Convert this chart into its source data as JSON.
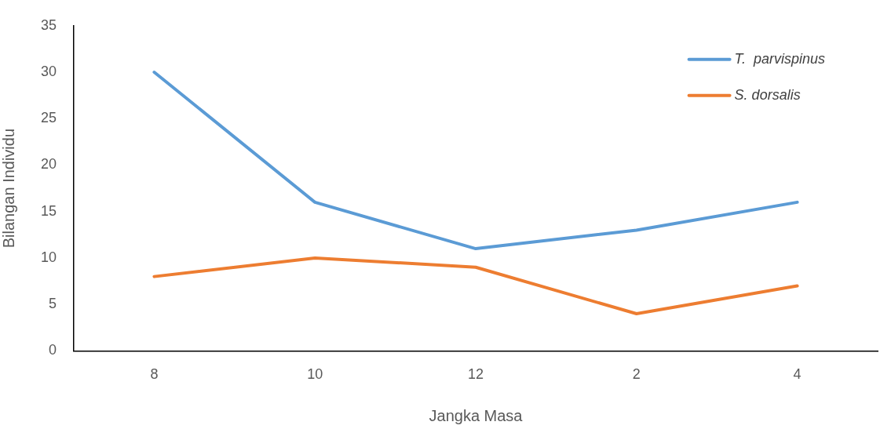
{
  "chart_data": {
    "type": "line",
    "xlabel": "Jangka Masa",
    "ylabel": "Bilangan Individu",
    "categories": [
      "8",
      "10",
      "12",
      "2",
      "4"
    ],
    "series": [
      {
        "name": "T.  parvispinus",
        "color": "#5b9bd5",
        "values": [
          30,
          16,
          11,
          13,
          16
        ]
      },
      {
        "name": "S. dorsalis",
        "color": "#ed7d31",
        "values": [
          8,
          10,
          9,
          4,
          7
        ]
      }
    ],
    "ylim": [
      0,
      35
    ],
    "yticks": [
      0,
      5,
      10,
      15,
      20,
      25,
      30,
      35
    ],
    "grid": false,
    "legend": "top right",
    "marker": "none",
    "line_style": "solid"
  }
}
